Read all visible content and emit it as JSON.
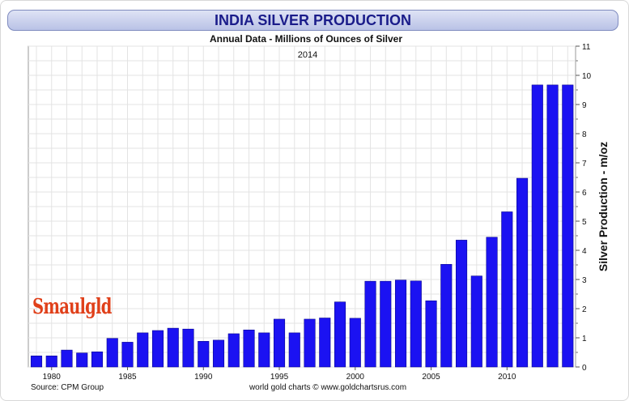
{
  "title": "INDIA SILVER PRODUCTION",
  "subtitle": "Annual Data - Millions of Ounces of Silver",
  "year_label": "2014",
  "source": "Source: CPM Group",
  "credit": "world gold charts © www.goldchartsrus.com",
  "logo_text": "Smaulgld",
  "colors": {
    "bar": "#1b12f2",
    "title": "#1a1c8a",
    "grid": "#e3e3e3",
    "logo": "#e0401a"
  },
  "chart_data": {
    "type": "bar",
    "title": "INDIA SILVER PRODUCTION",
    "subtitle": "Annual Data - Millions of Ounces of Silver",
    "xlabel": "",
    "ylabel": "Silver Production - m/oz",
    "ylim": [
      0,
      11
    ],
    "yticks": [
      0,
      1,
      2,
      3,
      4,
      5,
      6,
      7,
      8,
      9,
      10,
      11
    ],
    "xticks": [
      1980,
      1985,
      1990,
      1995,
      2000,
      2005,
      2010
    ],
    "grid": true,
    "x_axis_position": "bottom",
    "y_axis_position": "right",
    "categories": [
      1979,
      1980,
      1981,
      1982,
      1983,
      1984,
      1985,
      1986,
      1987,
      1988,
      1989,
      1990,
      1991,
      1992,
      1993,
      1994,
      1995,
      1996,
      1997,
      1998,
      1999,
      2000,
      2001,
      2002,
      2003,
      2004,
      2005,
      2006,
      2007,
      2008,
      2009,
      2010,
      2011,
      2012,
      2013,
      2014
    ],
    "values": [
      0.38,
      0.38,
      0.58,
      0.48,
      0.52,
      0.98,
      0.85,
      1.17,
      1.25,
      1.33,
      1.3,
      0.88,
      0.92,
      1.14,
      1.27,
      1.17,
      1.64,
      1.17,
      1.64,
      1.68,
      2.23,
      1.67,
      2.94,
      2.94,
      2.98,
      2.95,
      2.27,
      3.52,
      4.35,
      3.12,
      4.45,
      5.32,
      6.47,
      9.67,
      9.67,
      9.67
    ]
  }
}
